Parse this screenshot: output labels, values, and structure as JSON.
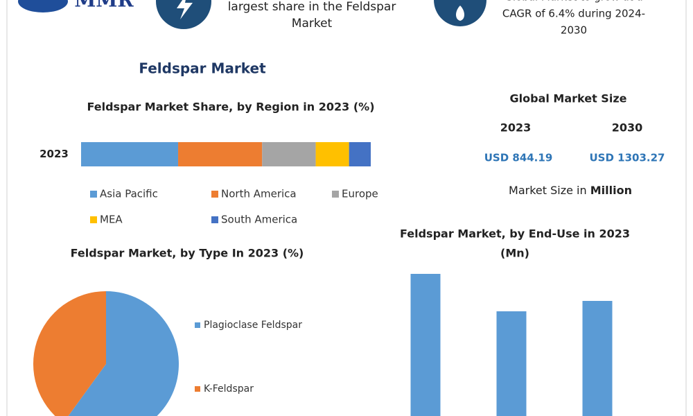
{
  "header": {
    "logo": "MMR",
    "callouts": [
      {
        "lines": [
          "largest share in the Feldspar",
          "Market"
        ]
      },
      {
        "lines": [
          "Global Market to grow at a",
          "CAGR of 6.4% during 2024-",
          "2030"
        ]
      }
    ],
    "title": "Feldspar Market"
  },
  "market_size": {
    "title": "Global Market Size",
    "years": [
      "2023",
      "2030"
    ],
    "values": [
      "USD 844.19",
      "USD 1303.27"
    ],
    "unit_prefix": "Market Size in",
    "unit_emphasis": "Million"
  },
  "chart_data": [
    {
      "type": "bar",
      "orientation": "horizontal",
      "stacked": true,
      "title": "Feldspar Market Share, by Region in 2023 (%)",
      "categories": [
        "2023"
      ],
      "xlim": [
        0,
        100
      ],
      "series": [
        {
          "name": "Asia Pacific",
          "color": "#5b9bd5",
          "values": [
            33.5
          ]
        },
        {
          "name": "North America",
          "color": "#ed7d31",
          "values": [
            29
          ]
        },
        {
          "name": "Europe",
          "color": "#a5a5a5",
          "values": [
            18.5
          ]
        },
        {
          "name": "MEA",
          "color": "#ffc000",
          "values": [
            11.5
          ]
        },
        {
          "name": "South America",
          "color": "#4472c4",
          "values": [
            7.5
          ]
        }
      ]
    },
    {
      "type": "pie",
      "title": "Feldspar Market, by Type In 2023 (%)",
      "categories": [
        "Plagioclase Feldspar",
        "K-Feldspar"
      ],
      "values": [
        60,
        40
      ],
      "colors": [
        "#5b9bd5",
        "#ed7d31"
      ]
    },
    {
      "type": "bar",
      "orientation": "vertical",
      "title": [
        "Feldspar Market, by  End-Use in 2023",
        "(Mn)"
      ],
      "categories": [
        null,
        null,
        null
      ],
      "values": [
        205,
        151,
        166
      ],
      "color": "#5b9bd5",
      "ylim": [
        0,
        228
      ]
    }
  ]
}
